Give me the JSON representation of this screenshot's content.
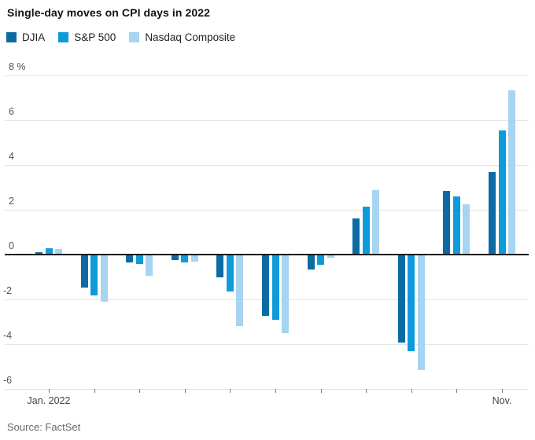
{
  "title": "Single-day moves on CPI days in 2022",
  "source": "Source: FactSet",
  "legend": [
    {
      "label": "DJIA",
      "color": "#0a6ca3"
    },
    {
      "label": "S&P 500",
      "color": "#0d9bda"
    },
    {
      "label": "Nasdaq Composite",
      "color": "#a6d4f1"
    }
  ],
  "chart_data": {
    "type": "bar",
    "title": "Single-day moves on CPI days in 2022",
    "categories": [
      "Jan. 2022",
      "",
      "",
      "",
      "",
      "",
      "",
      "",
      "",
      "",
      "Nov."
    ],
    "series": [
      {
        "name": "DJIA",
        "color": "#0a6ca3",
        "values": [
          0.11,
          -1.47,
          -0.34,
          -0.26,
          -1.02,
          -2.73,
          -0.67,
          1.63,
          -3.94,
          2.83,
          3.7
        ]
      },
      {
        "name": "S&P 500",
        "color": "#0d9bda",
        "values": [
          0.28,
          -1.81,
          -0.43,
          -0.34,
          -1.65,
          -2.91,
          -0.45,
          2.13,
          -4.32,
          2.6,
          5.54
        ]
      },
      {
        "name": "Nasdaq Composite",
        "color": "#a6d4f1",
        "values": [
          0.23,
          -2.1,
          -0.95,
          -0.3,
          -3.18,
          -3.52,
          -0.15,
          2.89,
          -5.16,
          2.23,
          7.35
        ]
      }
    ],
    "xlabel": "",
    "ylabel": "",
    "y_unit": "%",
    "ylim": [
      -6,
      8
    ],
    "yticks": [
      8,
      6,
      4,
      2,
      0,
      -2,
      -4,
      -6
    ],
    "grid": true,
    "legend_position": "top",
    "source": "Source: FactSet"
  }
}
